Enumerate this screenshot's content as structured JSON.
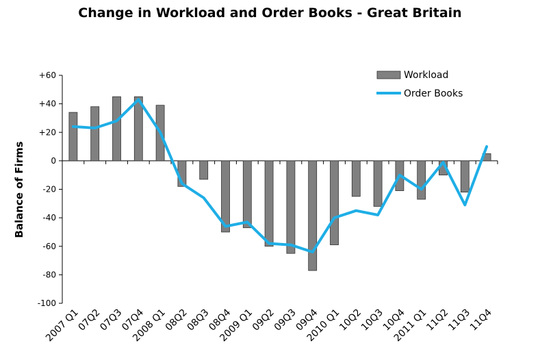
{
  "chart_data": {
    "type": "bar",
    "title": "Change in Workload and Order Books - Great Britain",
    "ylabel": "Balance of Firms",
    "xlabel": "",
    "ylim": [
      -100,
      60
    ],
    "yticks": [
      60,
      40,
      20,
      0,
      -20,
      -40,
      -60,
      -80,
      -100
    ],
    "ytick_labels": [
      "+60",
      "+40",
      "+20",
      "0",
      "-20",
      "-40",
      "-60",
      "-80",
      "-100"
    ],
    "categories": [
      "2007 Q1",
      "07Q2",
      "07Q3",
      "07Q4",
      "2008 Q1",
      "08Q2",
      "08Q3",
      "08Q4",
      "2009 Q1",
      "09Q2",
      "09Q3",
      "09Q4",
      "2010 Q1",
      "10Q2",
      "10Q3",
      "10Q4",
      "2011 Q1",
      "11Q2",
      "11Q3",
      "11Q4"
    ],
    "series": [
      {
        "name": "Workload",
        "type": "bar",
        "color": "#808080",
        "values": [
          34,
          38,
          45,
          45,
          39,
          -18,
          -13,
          -50,
          -47,
          -60,
          -65,
          -77,
          -59,
          -25,
          -32,
          -21,
          -27,
          -10,
          -22,
          5
        ]
      },
      {
        "name": "Order Books",
        "type": "line",
        "color": "#1eaee6",
        "values": [
          24,
          23,
          28,
          43,
          20,
          -16,
          -26,
          -46,
          -43,
          -58,
          -59,
          -64,
          -40,
          -35,
          -38,
          -10,
          -20,
          -1,
          -31,
          10
        ]
      }
    ],
    "legend_position": "top-right",
    "grid": false
  }
}
